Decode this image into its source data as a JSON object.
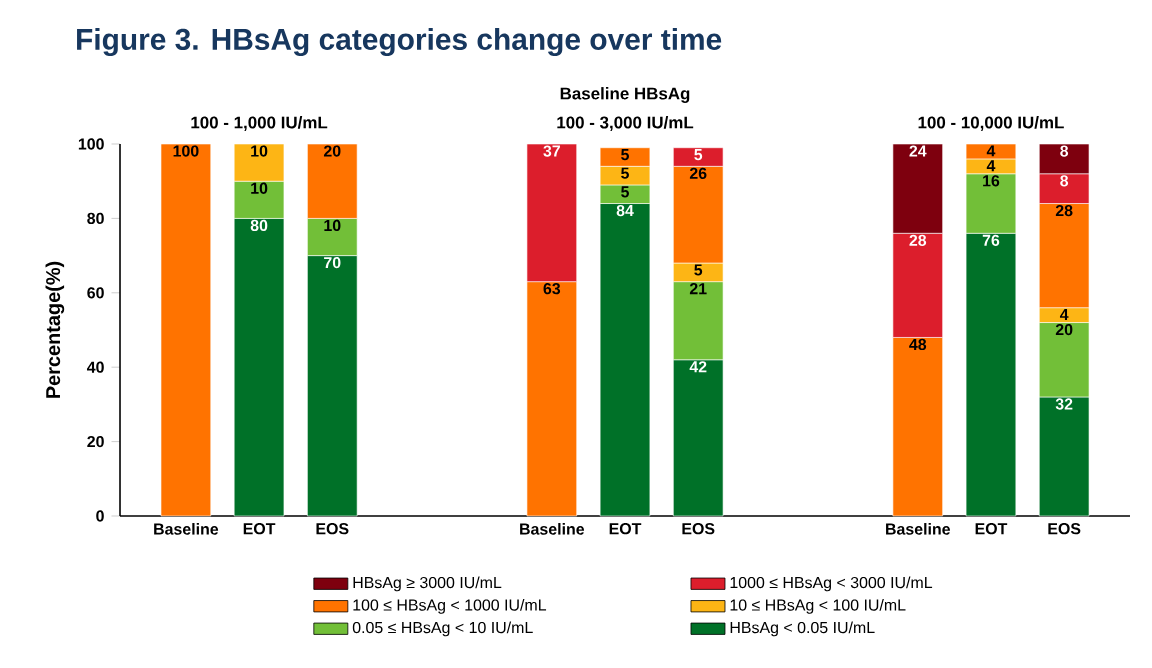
{
  "chart_data": {
    "type": "bar",
    "stacked": true,
    "title": "Figure 3. HBsAg categories change over time",
    "annotations": [
      "Baseline HBsAg",
      "100 - 1,000 IU/mL",
      "100 - 3,000 IU/mL",
      "100 - 10,000 IU/mL"
    ],
    "ylabel": "Percentage(%)",
    "categories": [
      "Baseline",
      "EOT",
      "EOS",
      null,
      null,
      "Baseline",
      "EOT",
      "EOS",
      null,
      null,
      "Baseline",
      "EOT",
      "EOS"
    ],
    "ylim": [
      0,
      100
    ],
    "yticks": [
      0,
      20,
      40,
      60,
      80,
      100
    ],
    "grid": false,
    "legend": "bottom",
    "data_labels": true,
    "series": [
      {
        "name": "HBsAg < 0.05 IU/mL",
        "color": "#007128",
        "values": [
          null,
          80,
          70,
          null,
          null,
          null,
          84,
          42,
          null,
          null,
          null,
          76,
          32
        ]
      },
      {
        "name": "0.05 ≤ HBsAg < 10 IU/mL",
        "color": "#72BF38",
        "values": [
          null,
          10,
          10,
          null,
          null,
          null,
          5,
          21,
          null,
          null,
          null,
          16,
          20
        ]
      },
      {
        "name": "10 ≤ HBsAg < 100 IU/mL",
        "color": "#FDB515",
        "values": [
          null,
          10,
          null,
          null,
          null,
          null,
          5,
          5,
          null,
          null,
          null,
          4,
          4
        ]
      },
      {
        "name": "100 ≤ HBsAg < 1000 IU/mL",
        "color": "#FF7300",
        "values": [
          100,
          null,
          20,
          null,
          null,
          63,
          5,
          26,
          null,
          null,
          48,
          4,
          28
        ]
      },
      {
        "name": "1000 ≤ HBsAg < 3000 IU/mL",
        "color": "#DC1E2C",
        "values": [
          null,
          null,
          null,
          null,
          null,
          37,
          null,
          5,
          null,
          null,
          28,
          null,
          8
        ]
      },
      {
        "name": "HBsAg ≥ 3000 IU/mL",
        "color": "#7E000E",
        "values": [
          null,
          null,
          null,
          null,
          null,
          null,
          null,
          null,
          null,
          null,
          24,
          null,
          8
        ]
      }
    ]
  }
}
